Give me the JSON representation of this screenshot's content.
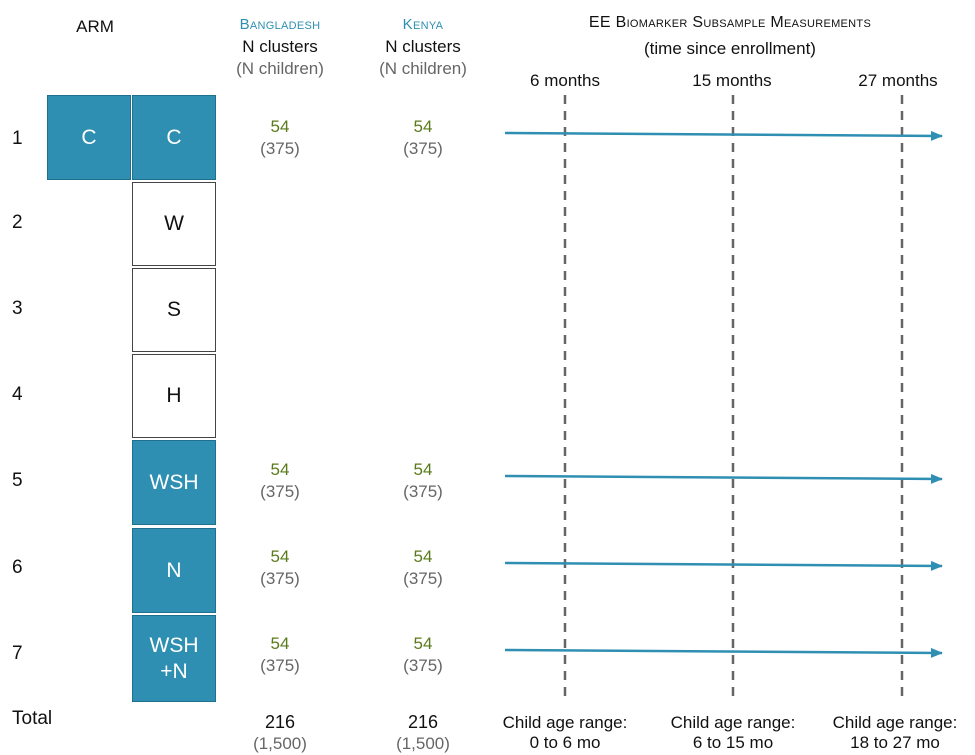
{
  "header": {
    "arm": "ARM",
    "bangladesh": "Bangladesh",
    "kenya": "Kenya",
    "n_clusters": "N clusters",
    "n_children": "(N children)",
    "measurements_title": "EE Biomarker Subsample Measurements",
    "measurements_subtitle": "(time since enrollment)",
    "timepoints": [
      "6 months",
      "15 months",
      "27 months"
    ]
  },
  "arms": [
    {
      "num": "1",
      "boxes": [
        "C",
        "C"
      ],
      "filled": true,
      "bangladesh": {
        "clusters": "54",
        "children": "(375)"
      },
      "kenya": {
        "clusters": "54",
        "children": "(375)"
      },
      "measured": true
    },
    {
      "num": "2",
      "boxes": [
        "W"
      ],
      "filled": false,
      "measured": false
    },
    {
      "num": "3",
      "boxes": [
        "S"
      ],
      "filled": false,
      "measured": false
    },
    {
      "num": "4",
      "boxes": [
        "H"
      ],
      "filled": false,
      "measured": false
    },
    {
      "num": "5",
      "boxes": [
        "WSH"
      ],
      "filled": true,
      "bangladesh": {
        "clusters": "54",
        "children": "(375)"
      },
      "kenya": {
        "clusters": "54",
        "children": "(375)"
      },
      "measured": true
    },
    {
      "num": "6",
      "boxes": [
        "N"
      ],
      "filled": true,
      "bangladesh": {
        "clusters": "54",
        "children": "(375)"
      },
      "kenya": {
        "clusters": "54",
        "children": "(375)"
      },
      "measured": true
    },
    {
      "num": "7",
      "boxes": [
        "WSH\n+N"
      ],
      "filled": true,
      "bangladesh": {
        "clusters": "54",
        "children": "(375)"
      },
      "kenya": {
        "clusters": "54",
        "children": "(375)"
      },
      "measured": true
    }
  ],
  "total": {
    "label": "Total",
    "bangladesh": {
      "clusters": "216",
      "children": "(1,500)"
    },
    "kenya": {
      "clusters": "216",
      "children": "(1,500)"
    }
  },
  "age_ranges": [
    {
      "label": "Child age range:",
      "range": "0 to 6 mo"
    },
    {
      "label": "Child age range:",
      "range": "6 to 15 mo"
    },
    {
      "label": "Child age range:",
      "range": "18 to 27 mo"
    }
  ],
  "colors": {
    "accent": "#2f8fb2",
    "cluster_text": "#5a7a1a",
    "dashed": "#666666"
  }
}
